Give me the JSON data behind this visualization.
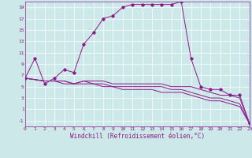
{
  "title": "",
  "xlabel": "Windchill (Refroidissement éolien,°C)",
  "bg_color": "#cce8e8",
  "line_color": "#8b1a8b",
  "xlim": [
    0,
    23
  ],
  "ylim": [
    -2,
    20
  ],
  "xticks": [
    0,
    1,
    2,
    3,
    4,
    5,
    6,
    7,
    8,
    9,
    10,
    11,
    12,
    13,
    14,
    15,
    16,
    17,
    18,
    19,
    20,
    21,
    22,
    23
  ],
  "yticks": [
    -1,
    1,
    3,
    5,
    7,
    9,
    11,
    13,
    15,
    17,
    19
  ],
  "series": [
    [
      0,
      6.5,
      1,
      10,
      2,
      5.5,
      3,
      6.5,
      4,
      8,
      5,
      7.5,
      6,
      12.5,
      7,
      14.5,
      8,
      17,
      9,
      17.5,
      10,
      19,
      11,
      19.5,
      12,
      19.5,
      13,
      19.5,
      14,
      19.5,
      15,
      19.5,
      16,
      20,
      17,
      10,
      18,
      5,
      19,
      4.5,
      20,
      4.5,
      21,
      3.5,
      22,
      3.5,
      23,
      -1.5
    ],
    [
      0,
      6.5,
      2,
      6,
      3,
      6,
      4,
      6,
      5,
      5.5,
      6,
      6,
      7,
      6,
      8,
      6,
      9,
      5.5,
      10,
      5.5,
      11,
      5.5,
      12,
      5.5,
      13,
      5.5,
      14,
      5.5,
      15,
      5,
      16,
      5,
      17,
      5,
      18,
      4.5,
      19,
      4,
      20,
      3.5,
      21,
      3.5,
      22,
      3,
      23,
      -1.5
    ],
    [
      0,
      6.5,
      2,
      6,
      3,
      6,
      4,
      6,
      5,
      5.5,
      6,
      6,
      7,
      5.5,
      8,
      5.5,
      9,
      5,
      10,
      5,
      11,
      5,
      12,
      5,
      13,
      5,
      14,
      5,
      15,
      4.5,
      16,
      4.5,
      17,
      4,
      18,
      3.5,
      19,
      3,
      20,
      3,
      21,
      2.5,
      22,
      2,
      23,
      -1.5
    ],
    [
      0,
      6.5,
      2,
      6,
      3,
      6,
      4,
      5.5,
      5,
      5.5,
      6,
      5.5,
      7,
      5.5,
      8,
      5,
      9,
      5,
      10,
      4.5,
      11,
      4.5,
      12,
      4.5,
      13,
      4.5,
      14,
      4,
      15,
      4,
      16,
      4,
      17,
      3.5,
      18,
      3,
      19,
      2.5,
      20,
      2.5,
      21,
      2,
      22,
      1.5,
      23,
      -1.5
    ]
  ],
  "xlabel_fontsize": 5.5,
  "tick_fontsize": 4.5
}
